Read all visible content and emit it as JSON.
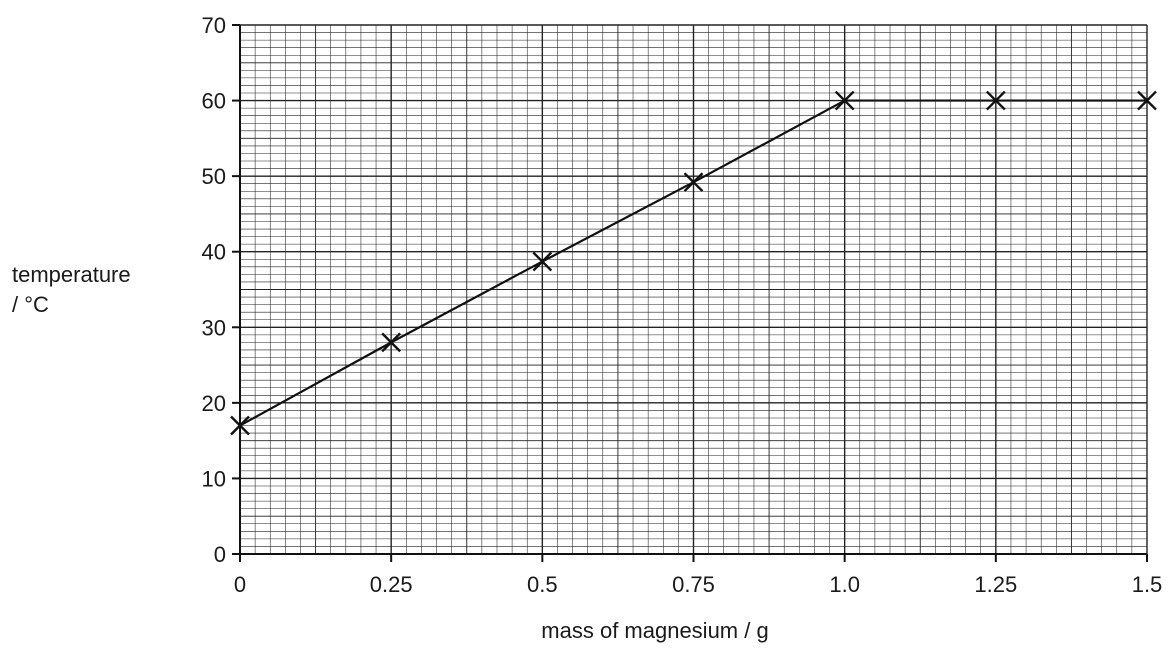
{
  "chart_data": {
    "type": "line",
    "title": "",
    "xlabel": "mass of magnesium / g",
    "ylabel_lines": [
      "temperature",
      "/ °C"
    ],
    "x_ticks": [
      "0",
      "0.25",
      "0.5",
      "0.75",
      "1.0",
      "1.25",
      "1.5"
    ],
    "y_ticks": [
      "0",
      "10",
      "20",
      "30",
      "40",
      "50",
      "60",
      "70"
    ],
    "xlim": [
      0,
      1.5
    ],
    "ylim": [
      0,
      70
    ],
    "grid": true,
    "marker": "x",
    "series": [
      {
        "x": [
          0,
          0.25,
          0.5,
          0.75,
          1.0,
          1.25,
          1.5
        ],
        "y": [
          17,
          28,
          38.7,
          49.2,
          60,
          60,
          60
        ]
      }
    ]
  }
}
